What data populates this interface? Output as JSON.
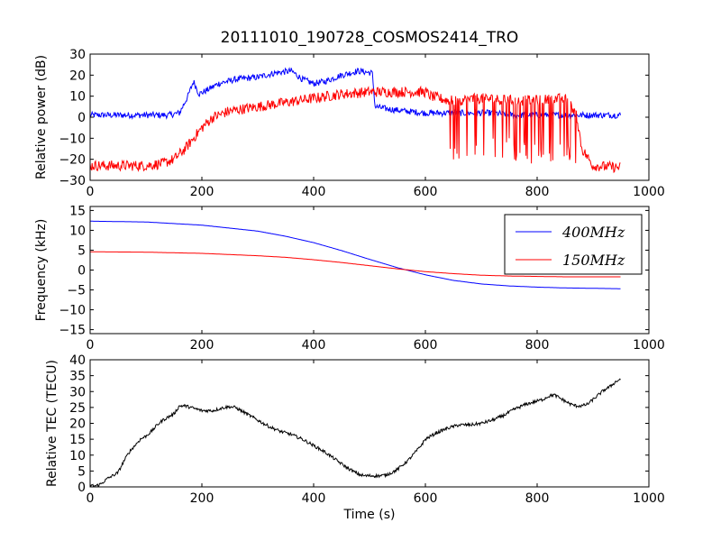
{
  "figure": {
    "title": "20111010_190728_COSMOS2414_TRO"
  },
  "chart_data": [
    {
      "type": "line",
      "title": "20111010_190728_COSMOS2414_TRO",
      "xlabel": "",
      "ylabel": "Relative power (dB)",
      "xlim": [
        0,
        1000
      ],
      "ylim": [
        -30,
        30
      ],
      "xticks": [
        "0",
        "200",
        "400",
        "600",
        "800",
        "1000"
      ],
      "yticks": [
        "−30",
        "−20",
        "−10",
        "0",
        "10",
        "20",
        "30"
      ],
      "grid": false,
      "series": [
        {
          "color": "#0000ff",
          "x": [
            0,
            20,
            60,
            100,
            140,
            160,
            175,
            185,
            195,
            210,
            230,
            260,
            300,
            330,
            360,
            380,
            400,
            420,
            450,
            480,
            505,
            510,
            530,
            560,
            600,
            640,
            680,
            720,
            760,
            800,
            840,
            880,
            920,
            950
          ],
          "y": [
            1,
            1,
            1,
            1,
            1,
            2,
            10,
            17,
            11,
            13,
            16,
            18,
            19,
            21,
            22,
            18,
            16,
            17,
            20,
            22,
            21,
            5,
            4,
            3,
            2,
            2,
            2,
            2,
            1,
            1,
            1,
            1,
            1,
            1
          ],
          "noise": 1.5
        },
        {
          "color": "#ff0000",
          "x": [
            0,
            50,
            100,
            130,
            150,
            170,
            185,
            200,
            220,
            250,
            300,
            350,
            400,
            450,
            500,
            550,
            600,
            610,
            640,
            660,
            700,
            750,
            800,
            850,
            870,
            880,
            900,
            950
          ],
          "y": [
            -23,
            -23,
            -23,
            -22,
            -20,
            -15,
            -10,
            -5,
            0,
            3,
            5,
            7,
            9,
            11,
            12,
            12,
            12,
            10,
            8,
            8,
            9,
            8,
            8,
            9,
            2,
            -15,
            -23,
            -24
          ],
          "noise": 2.5,
          "spike_range": [
            640,
            870
          ]
        }
      ]
    },
    {
      "type": "line",
      "title": "",
      "xlabel": "",
      "ylabel": "Frequency (kHz)",
      "xlim": [
        0,
        1000
      ],
      "ylim": [
        -16,
        16
      ],
      "xticks": [
        "0",
        "200",
        "400",
        "600",
        "800",
        "1000"
      ],
      "yticks": [
        "−15",
        "−10",
        "−5",
        "0",
        "5",
        "10",
        "15"
      ],
      "grid": false,
      "legend_position": "top-right",
      "series": [
        {
          "name": "400MHz",
          "color": "#0000ff",
          "x": [
            0,
            100,
            200,
            300,
            350,
            400,
            450,
            500,
            550,
            600,
            650,
            700,
            750,
            800,
            850,
            900,
            950
          ],
          "y": [
            12.3,
            12.1,
            11.3,
            9.8,
            8.5,
            6.9,
            4.9,
            2.7,
            0.6,
            -1.2,
            -2.6,
            -3.5,
            -4.0,
            -4.3,
            -4.5,
            -4.6,
            -4.7
          ]
        },
        {
          "name": "150MHz",
          "color": "#ff0000",
          "x": [
            0,
            100,
            200,
            300,
            350,
            400,
            450,
            500,
            550,
            600,
            650,
            700,
            750,
            800,
            850,
            900,
            950
          ],
          "y": [
            4.6,
            4.5,
            4.2,
            3.6,
            3.2,
            2.6,
            1.9,
            1.1,
            0.3,
            -0.4,
            -0.9,
            -1.3,
            -1.5,
            -1.6,
            -1.7,
            -1.7,
            -1.7
          ]
        }
      ]
    },
    {
      "type": "line",
      "title": "",
      "xlabel": "Time (s)",
      "ylabel": "Relative TEC (TECU)",
      "xlim": [
        0,
        1000
      ],
      "ylim": [
        0,
        40
      ],
      "xticks": [
        "0",
        "200",
        "400",
        "600",
        "800",
        "1000"
      ],
      "yticks": [
        "0",
        "5",
        "10",
        "15",
        "20",
        "25",
        "30",
        "35",
        "40"
      ],
      "grid": false,
      "series": [
        {
          "color": "#000000",
          "x": [
            0,
            10,
            20,
            30,
            50,
            60,
            70,
            80,
            90,
            100,
            110,
            120,
            130,
            140,
            150,
            160,
            170,
            180,
            190,
            200,
            210,
            220,
            230,
            240,
            250,
            260,
            270,
            280,
            300,
            320,
            340,
            360,
            380,
            400,
            420,
            440,
            460,
            470,
            480,
            490,
            500,
            510,
            520,
            530,
            540,
            550,
            560,
            570,
            580,
            590,
            600,
            620,
            640,
            660,
            680,
            700,
            720,
            740,
            760,
            780,
            800,
            810,
            820,
            830,
            840,
            850,
            860,
            870,
            880,
            890,
            900,
            910,
            920,
            930,
            940,
            950
          ],
          "y": [
            0.5,
            0.3,
            1.0,
            2.5,
            4.5,
            8.0,
            11.0,
            13.0,
            15.0,
            16.0,
            17.5,
            19.5,
            21.0,
            22.0,
            23.0,
            25.5,
            25.5,
            25.0,
            24.5,
            24.0,
            24.0,
            24.0,
            24.5,
            25.0,
            25.2,
            25.0,
            24.0,
            23.0,
            21.0,
            19.0,
            17.5,
            16.5,
            15.0,
            13.0,
            11.0,
            8.5,
            6.0,
            5.0,
            4.0,
            3.5,
            3.5,
            3.5,
            3.5,
            3.8,
            4.5,
            5.5,
            7.0,
            8.5,
            10.5,
            12.5,
            15.0,
            17.0,
            18.5,
            19.5,
            19.5,
            20.0,
            21.0,
            22.5,
            24.5,
            26.0,
            27.0,
            27.5,
            28.5,
            29.0,
            28.0,
            27.0,
            26.0,
            25.5,
            25.5,
            26.0,
            27.5,
            29.0,
            30.5,
            31.5,
            33.0,
            34.0
          ],
          "noise": 0.5
        }
      ]
    }
  ]
}
